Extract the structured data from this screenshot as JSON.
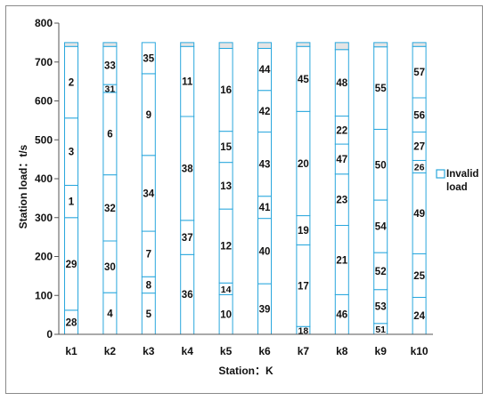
{
  "chart_data": {
    "type": "stacked-bar",
    "xlabel": "Station：K",
    "ylabel": "Station load：t/s",
    "ylim": [
      0,
      800
    ],
    "yticks": [
      0,
      100,
      200,
      300,
      400,
      500,
      600,
      700,
      800
    ],
    "grid": false,
    "legend": {
      "position": "right",
      "label": "Invalid load"
    },
    "colors": {
      "segment_stroke": "#2aa7dd",
      "invalid_fill": "#e5e5e5",
      "segment_fill": "#ffffff"
    },
    "capacity": 750,
    "stations": [
      {
        "label": "k1",
        "segments": [
          {
            "id": "28",
            "value": 62
          },
          {
            "id": "29",
            "value": 238
          },
          {
            "id": "1",
            "value": 83
          },
          {
            "id": "3",
            "value": 173
          },
          {
            "id": "2",
            "value": 184
          }
        ],
        "invalid": 10
      },
      {
        "label": "k2",
        "segments": [
          {
            "id": "4",
            "value": 107
          },
          {
            "id": "30",
            "value": 133
          },
          {
            "id": "32",
            "value": 170
          },
          {
            "id": "6",
            "value": 212
          },
          {
            "id": "31",
            "value": 20
          },
          {
            "id": "33",
            "value": 98
          }
        ],
        "invalid": 10
      },
      {
        "label": "k3",
        "segments": [
          {
            "id": "5",
            "value": 106
          },
          {
            "id": "8",
            "value": 42
          },
          {
            "id": "7",
            "value": 117
          },
          {
            "id": "34",
            "value": 195
          },
          {
            "id": "9",
            "value": 210
          },
          {
            "id": "35",
            "value": 80
          }
        ],
        "invalid": 0
      },
      {
        "label": "k4",
        "segments": [
          {
            "id": "36",
            "value": 205
          },
          {
            "id": "37",
            "value": 88
          },
          {
            "id": "38",
            "value": 267
          },
          {
            "id": "11",
            "value": 180
          }
        ],
        "invalid": 10
      },
      {
        "label": "k5",
        "segments": [
          {
            "id": "10",
            "value": 102
          },
          {
            "id": "14",
            "value": 30
          },
          {
            "id": "12",
            "value": 190
          },
          {
            "id": "13",
            "value": 120
          },
          {
            "id": "15",
            "value": 80
          },
          {
            "id": "16",
            "value": 213
          }
        ],
        "invalid": 15
      },
      {
        "label": "k6",
        "segments": [
          {
            "id": "39",
            "value": 130
          },
          {
            "id": "40",
            "value": 168
          },
          {
            "id": "41",
            "value": 57
          },
          {
            "id": "43",
            "value": 165
          },
          {
            "id": "42",
            "value": 107
          },
          {
            "id": "44",
            "value": 108
          }
        ],
        "invalid": 15
      },
      {
        "label": "k7",
        "segments": [
          {
            "id": "18",
            "value": 20
          },
          {
            "id": "17",
            "value": 210
          },
          {
            "id": "19",
            "value": 75
          },
          {
            "id": "20",
            "value": 268
          },
          {
            "id": "45",
            "value": 167
          }
        ],
        "invalid": 10
      },
      {
        "label": "k8",
        "segments": [
          {
            "id": "46",
            "value": 102
          },
          {
            "id": "21",
            "value": 178
          },
          {
            "id": "23",
            "value": 132
          },
          {
            "id": "47",
            "value": 77
          },
          {
            "id": "22",
            "value": 72
          },
          {
            "id": "48",
            "value": 171
          }
        ],
        "invalid": 18
      },
      {
        "label": "k9",
        "segments": [
          {
            "id": "51",
            "value": 28
          },
          {
            "id": "53",
            "value": 87
          },
          {
            "id": "52",
            "value": 95
          },
          {
            "id": "54",
            "value": 135
          },
          {
            "id": "50",
            "value": 182
          },
          {
            "id": "55",
            "value": 212
          }
        ],
        "invalid": 11
      },
      {
        "label": "k10",
        "segments": [
          {
            "id": "24",
            "value": 95
          },
          {
            "id": "25",
            "value": 112
          },
          {
            "id": "49",
            "value": 208
          },
          {
            "id": "26",
            "value": 32
          },
          {
            "id": "27",
            "value": 73
          },
          {
            "id": "56",
            "value": 88
          },
          {
            "id": "57",
            "value": 132
          }
        ],
        "invalid": 10
      }
    ]
  }
}
